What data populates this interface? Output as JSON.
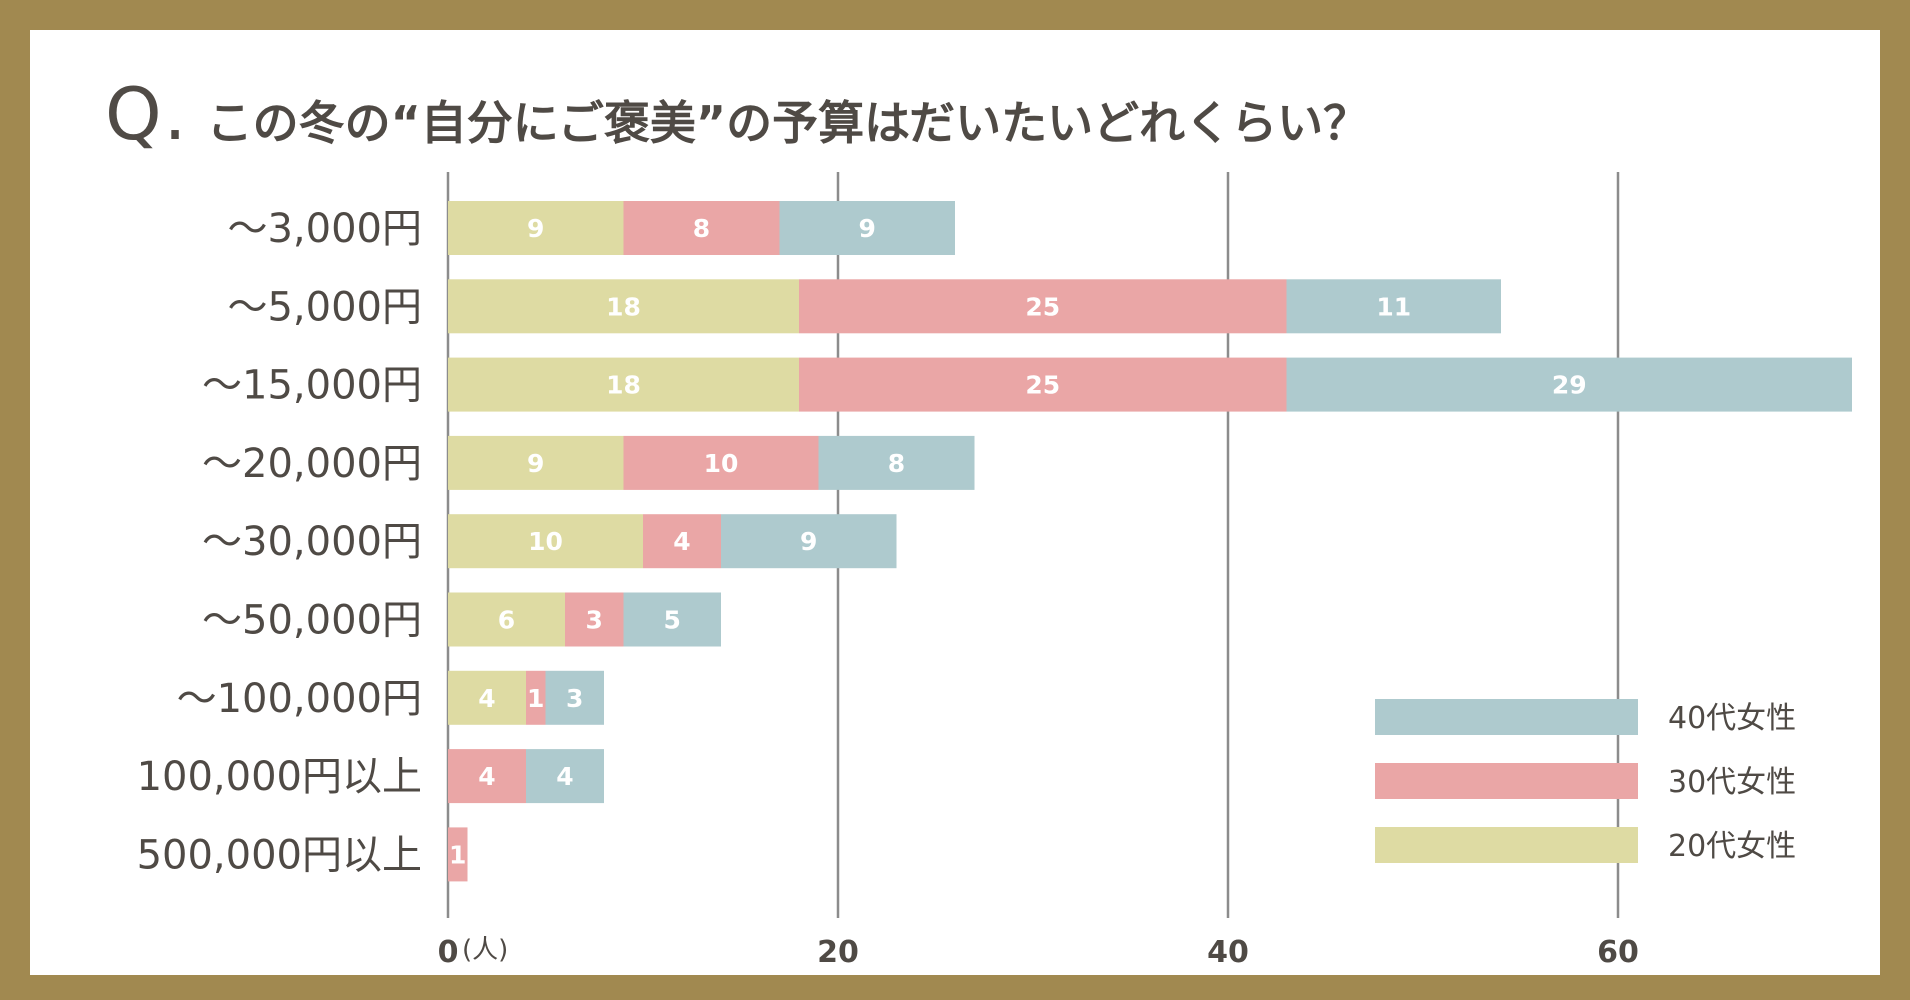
{
  "title": {
    "prefix": "Q.",
    "text": "この冬の“自分にご褒美”の予算はだいたいどれくらい？"
  },
  "colors": {
    "frame": "#a18950",
    "background": "#ffffff",
    "s20": "#dedba3",
    "s30": "#eaa6a6",
    "s40": "#aecace",
    "grid": "#8c8c8c",
    "label_text": "#4f4a45"
  },
  "chart_data": {
    "type": "bar",
    "orientation": "horizontal",
    "stacked": true,
    "categories": [
      "〜3,000円",
      "〜5,000円",
      "〜15,000円",
      "〜20,000円",
      "〜30,000円",
      "〜50,000円",
      "〜100,000円",
      "100,000円以上",
      "500,000円以上"
    ],
    "series": [
      {
        "name": "20代女性",
        "color": "#dedba3",
        "values": [
          9,
          18,
          18,
          9,
          10,
          6,
          4,
          0,
          0
        ]
      },
      {
        "name": "30代女性",
        "color": "#eaa6a6",
        "values": [
          8,
          25,
          25,
          10,
          4,
          3,
          1,
          4,
          1
        ]
      },
      {
        "name": "40代女性",
        "color": "#aecace",
        "values": [
          9,
          11,
          29,
          8,
          9,
          5,
          3,
          4,
          0
        ]
      }
    ],
    "xlim": [
      0,
      71
    ],
    "x_ticks": [
      "0",
      "20",
      "40",
      "60"
    ],
    "x_tick_values": [
      0,
      20,
      40,
      60
    ],
    "x_unit": "(人)",
    "grid": true,
    "legend": {
      "position": "bottom-right",
      "order": [
        "40代女性",
        "30代女性",
        "20代女性"
      ]
    },
    "data_labels": true
  }
}
